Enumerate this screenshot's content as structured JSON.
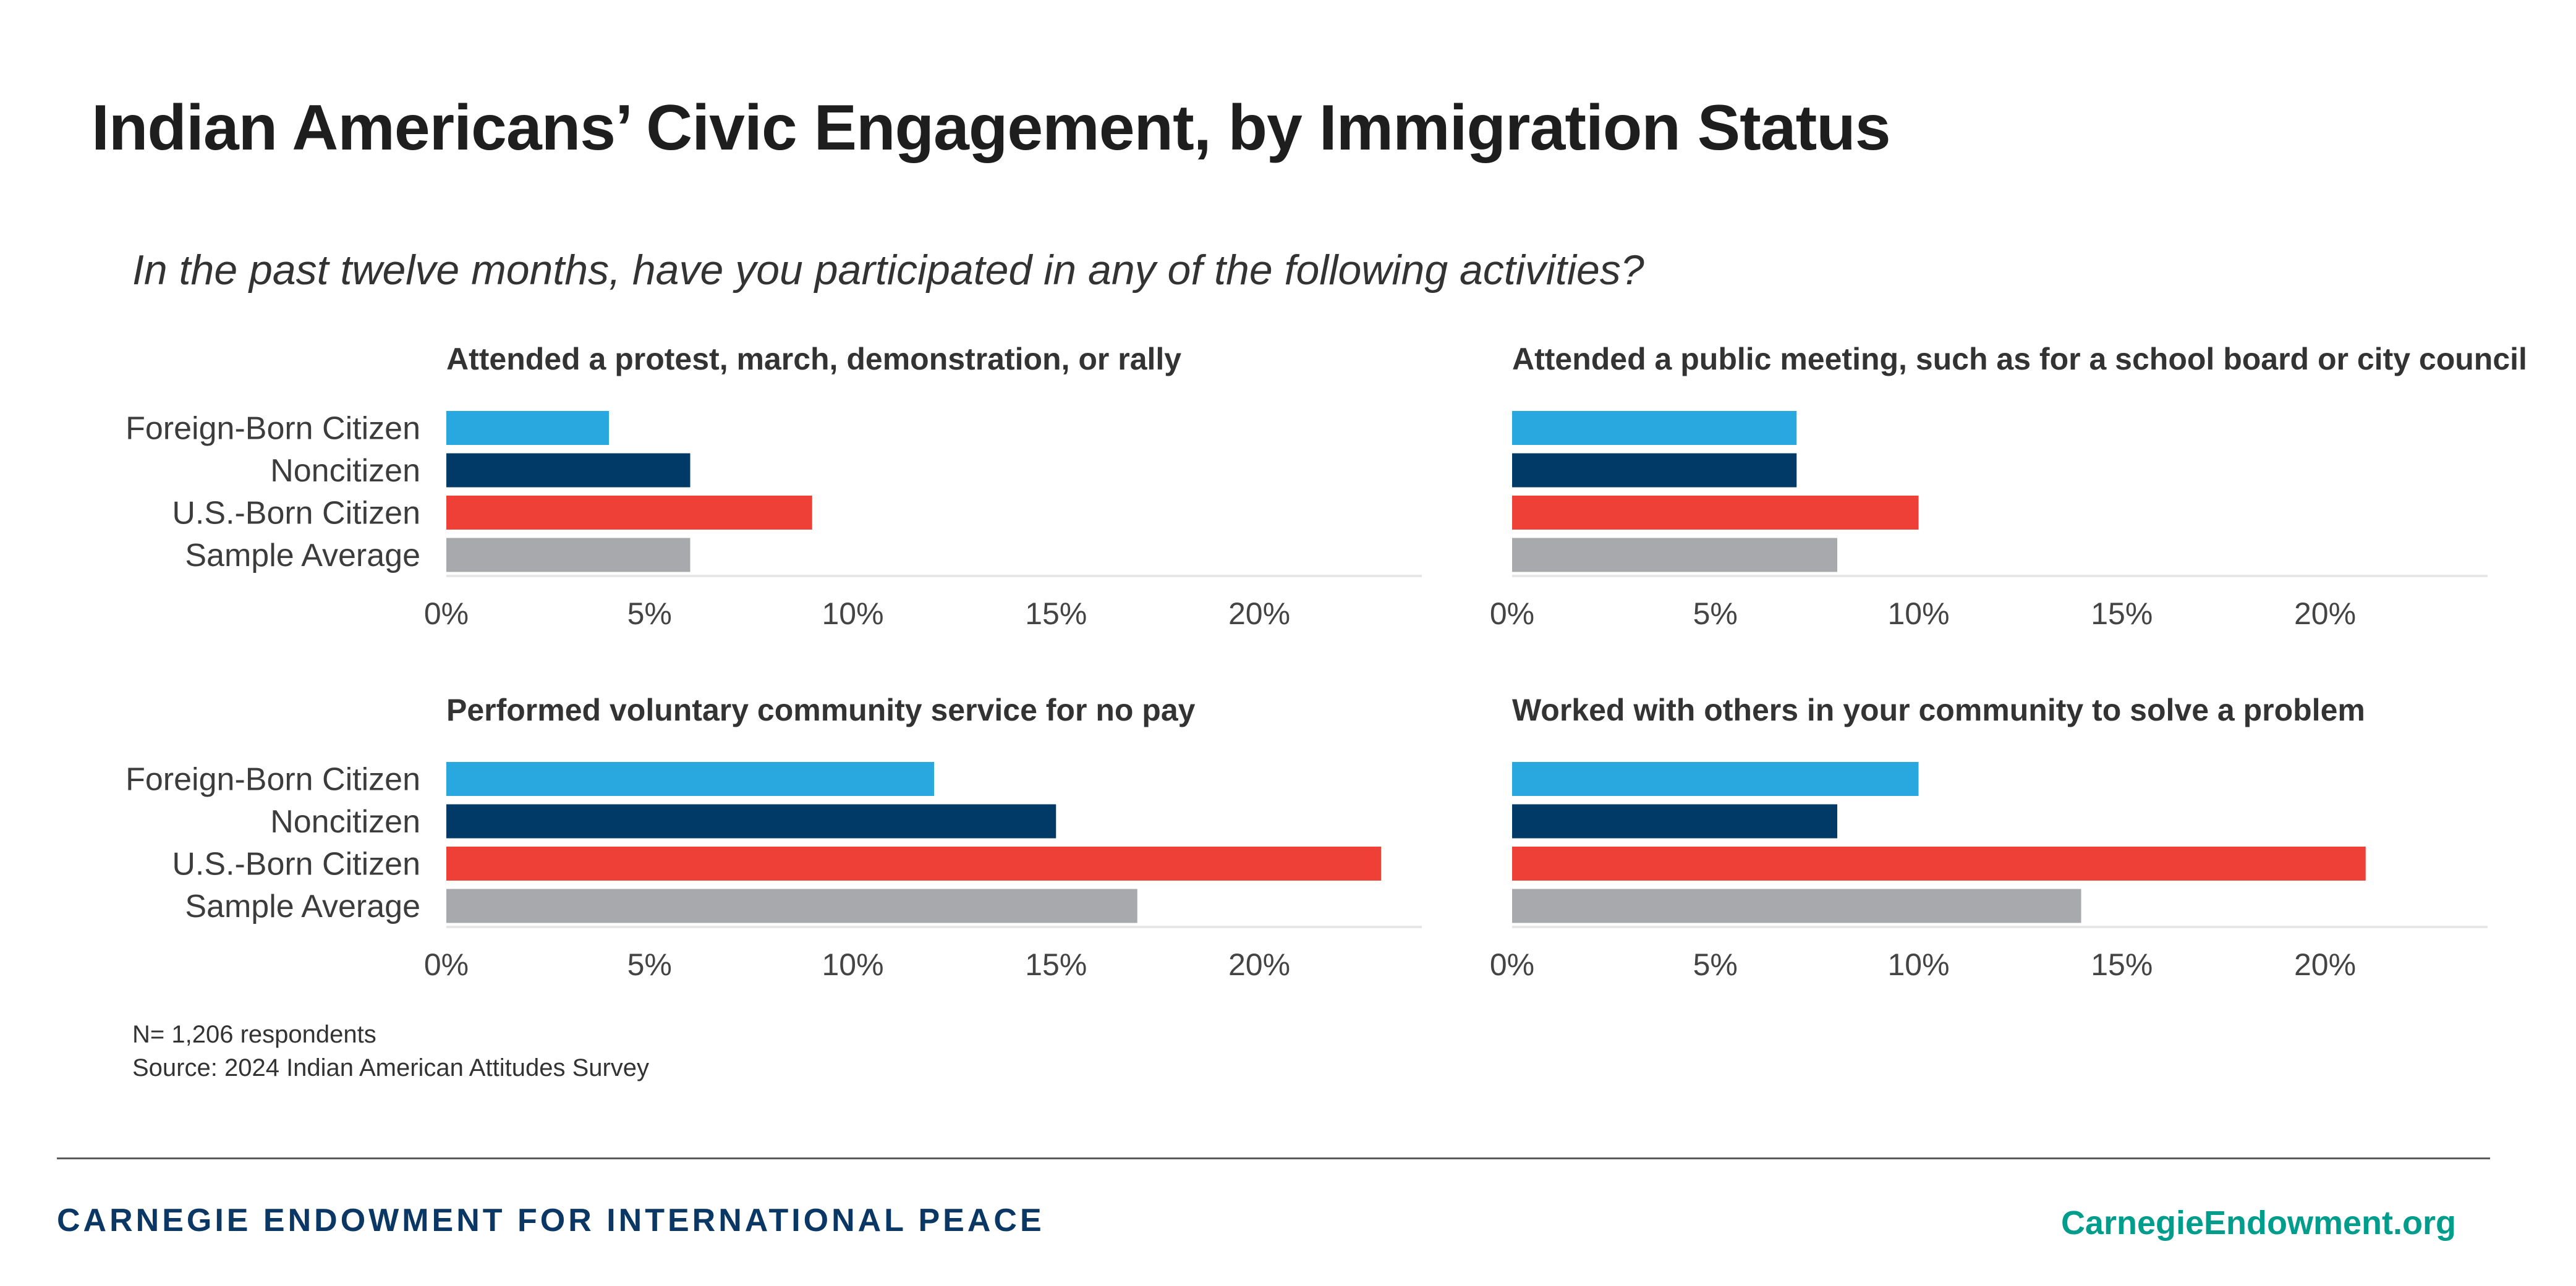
{
  "title": "Indian Americans’ Civic Engagement, by Immigration Status",
  "subtitle": "In the past twelve months, have you participated in any of the following activities?",
  "colors": {
    "foreign_born_citizen": "#29a8e0",
    "noncitizen": "#023a67",
    "us_born_citizen": "#ee4036",
    "sample_average": "#a7a9ac",
    "gridline": "#e6e6e6"
  },
  "chart_data": [
    {
      "type": "bar",
      "orientation": "horizontal",
      "title": "Attended a protest, march, demonstration, or rally",
      "categories": [
        "Foreign-Born Citizen",
        "Noncitizen",
        "U.S.-Born Citizen",
        "Sample Average"
      ],
      "values": [
        4,
        6,
        9,
        6
      ],
      "xlim": [
        0,
        24
      ],
      "xticks": [
        0,
        5,
        10,
        15,
        20
      ],
      "tick_labels": [
        "0%",
        "5%",
        "10%",
        "15%",
        "20%"
      ],
      "show_category_labels": true
    },
    {
      "type": "bar",
      "orientation": "horizontal",
      "title": "Attended a public meeting, such as for a school board or city council",
      "categories": [
        "Foreign-Born Citizen",
        "Noncitizen",
        "U.S.-Born Citizen",
        "Sample Average"
      ],
      "values": [
        7,
        7,
        10,
        8
      ],
      "xlim": [
        0,
        24
      ],
      "xticks": [
        0,
        5,
        10,
        15,
        20
      ],
      "tick_labels": [
        "0%",
        "5%",
        "10%",
        "15%",
        "20%"
      ],
      "show_category_labels": false
    },
    {
      "type": "bar",
      "orientation": "horizontal",
      "title": "Performed voluntary community service for no pay",
      "categories": [
        "Foreign-Born Citizen",
        "Noncitizen",
        "U.S.-Born Citizen",
        "Sample Average"
      ],
      "values": [
        12,
        15,
        23,
        17
      ],
      "xlim": [
        0,
        24
      ],
      "xticks": [
        0,
        5,
        10,
        15,
        20
      ],
      "tick_labels": [
        "0%",
        "5%",
        "10%",
        "15%",
        "20%"
      ],
      "show_category_labels": true
    },
    {
      "type": "bar",
      "orientation": "horizontal",
      "title": "Worked with others in your community to solve a problem",
      "categories": [
        "Foreign-Born Citizen",
        "Noncitizen",
        "U.S.-Born Citizen",
        "Sample Average"
      ],
      "values": [
        10,
        8,
        21,
        14
      ],
      "xlim": [
        0,
        24
      ],
      "xticks": [
        0,
        5,
        10,
        15,
        20
      ],
      "tick_labels": [
        "0%",
        "5%",
        "10%",
        "15%",
        "20%"
      ],
      "show_category_labels": false
    }
  ],
  "notes": {
    "n": "N= 1,206 respondents",
    "source": "Source: 2024 Indian American Attitudes Survey"
  },
  "footer": {
    "org": "CARNEGIE ENDOWMENT FOR INTERNATIONAL PEACE",
    "url": "CarnegieEndowment.org"
  }
}
